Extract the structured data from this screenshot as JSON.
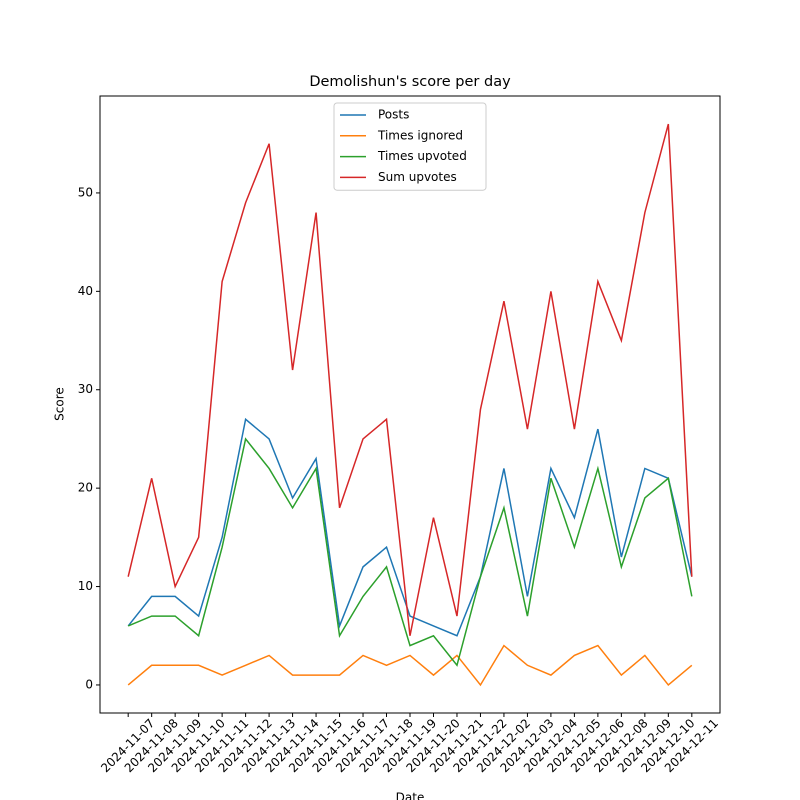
{
  "chart_data": {
    "type": "line",
    "title": "Demolishun's score per day",
    "xlabel": "Date",
    "ylabel": "Score",
    "categories": [
      "2024-11-07",
      "2024-11-08",
      "2024-11-09",
      "2024-11-10",
      "2024-11-11",
      "2024-11-12",
      "2024-11-13",
      "2024-11-14",
      "2024-11-15",
      "2024-11-16",
      "2024-11-17",
      "2024-11-18",
      "2024-11-19",
      "2024-11-20",
      "2024-11-21",
      "2024-11-22",
      "2024-12-02",
      "2024-12-03",
      "2024-12-04",
      "2024-12-05",
      "2024-12-06",
      "2024-12-08",
      "2024-12-09",
      "2024-12-10",
      "2024-12-11"
    ],
    "series": [
      {
        "name": "Posts",
        "color": "#1f77b4",
        "values": [
          6,
          9,
          9,
          7,
          15,
          27,
          25,
          19,
          23,
          6,
          12,
          14,
          7,
          6,
          5,
          11,
          22,
          9,
          22,
          17,
          26,
          13,
          22,
          21,
          11
        ]
      },
      {
        "name": "Times ignored",
        "color": "#ff7f0e",
        "values": [
          0,
          2,
          2,
          2,
          1,
          2,
          3,
          1,
          1,
          1,
          3,
          2,
          3,
          1,
          3,
          0,
          4,
          2,
          1,
          3,
          4,
          1,
          3,
          0,
          2
        ]
      },
      {
        "name": "Times upvoted",
        "color": "#2ca02c",
        "values": [
          6,
          7,
          7,
          5,
          14,
          25,
          22,
          18,
          22,
          5,
          9,
          12,
          4,
          5,
          2,
          11,
          18,
          7,
          21,
          14,
          22,
          12,
          19,
          21,
          9
        ]
      },
      {
        "name": "Sum upvotes",
        "color": "#d62728",
        "values": [
          11,
          21,
          10,
          15,
          41,
          49,
          55,
          32,
          48,
          18,
          25,
          27,
          5,
          17,
          7,
          28,
          39,
          26,
          40,
          26,
          41,
          35,
          48,
          57,
          11
        ]
      }
    ],
    "ylim": [
      -2.85,
      59.85
    ],
    "yticks": [
      0,
      10,
      20,
      30,
      40,
      50
    ],
    "legend": "upper center",
    "grid": false
  }
}
